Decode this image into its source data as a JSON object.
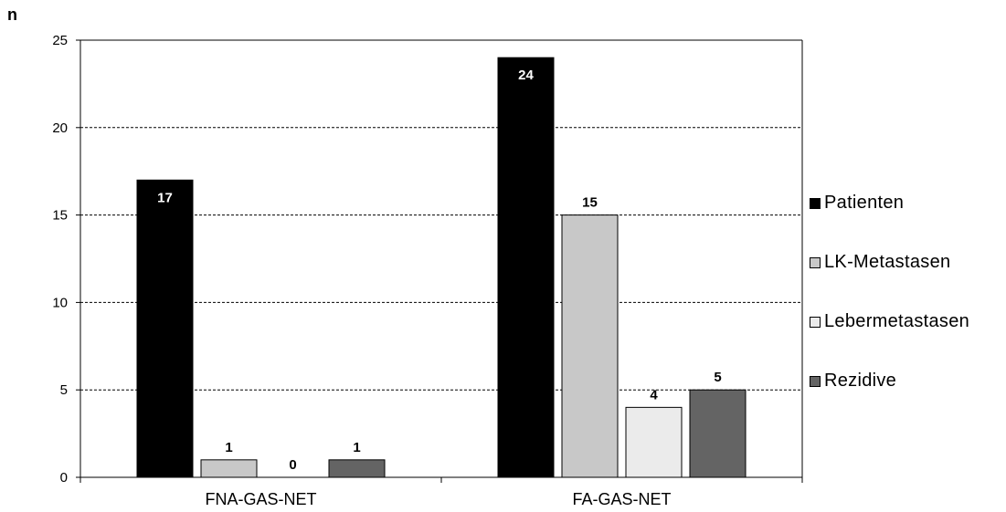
{
  "chart_data": {
    "type": "bar",
    "ylabel": "n",
    "categories": [
      "FNA-GAS-NET",
      "FA-GAS-NET"
    ],
    "series": [
      {
        "name": "Patienten",
        "values": [
          17,
          24
        ],
        "color": "#000000",
        "labelColor": "#ffffff",
        "labelInside": true
      },
      {
        "name": "LK-Metastasen",
        "values": [
          1,
          15
        ],
        "color": "#c8c8c8",
        "labelColor": "#000000",
        "labelInside": false
      },
      {
        "name": "Lebermetastasen",
        "values": [
          0,
          4
        ],
        "color": "#ebebeb",
        "labelColor": "#000000",
        "labelInside": false
      },
      {
        "name": "Rezidive",
        "values": [
          1,
          5
        ],
        "color": "#646464",
        "labelColor": "#000000",
        "labelInside": false
      }
    ],
    "yticks": [
      0,
      5,
      10,
      15,
      20,
      25
    ],
    "ylim": [
      0,
      25
    ],
    "grid": true,
    "legend_position": "right"
  }
}
